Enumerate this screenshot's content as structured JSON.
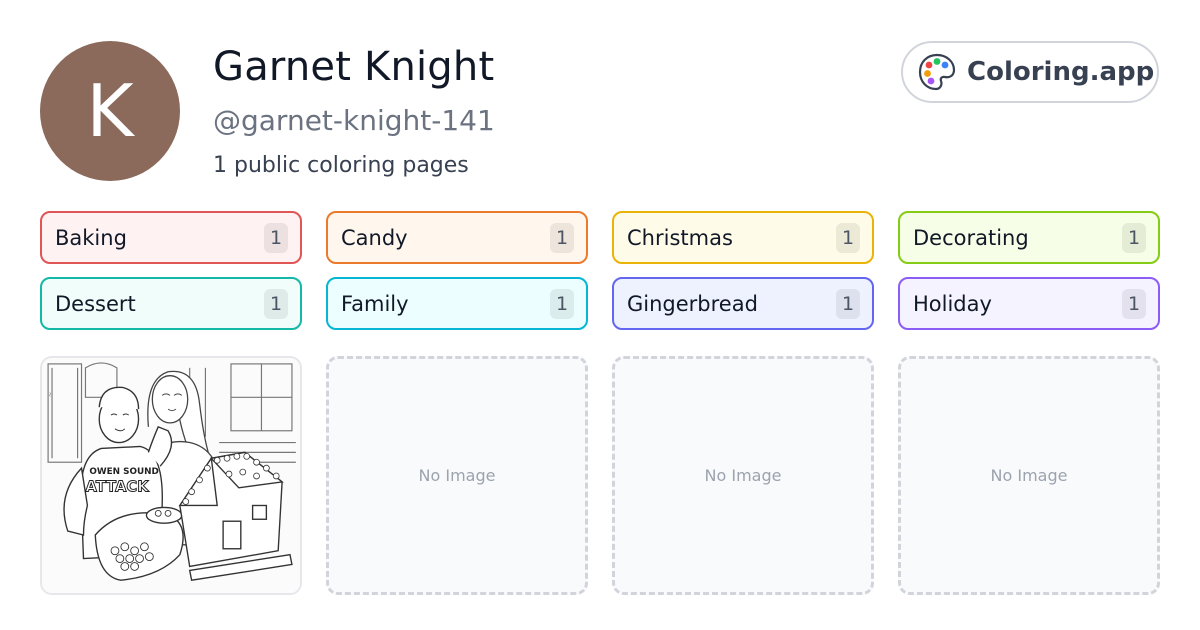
{
  "profile": {
    "initial": "K",
    "name": "Garnet Knight",
    "handle": "@garnet-knight-141",
    "count_text": "1 public coloring pages",
    "avatar_color": "#8b6a5c"
  },
  "brand": {
    "label": "Coloring.app",
    "icon": "palette-icon"
  },
  "tags": [
    {
      "label": "Baking",
      "count": "1",
      "border": "#e05555",
      "bg": "#fef2f2"
    },
    {
      "label": "Candy",
      "count": "1",
      "border": "#ec7a2c",
      "bg": "#fff7ed"
    },
    {
      "label": "Christmas",
      "count": "1",
      "border": "#eab308",
      "bg": "#fefce8"
    },
    {
      "label": "Decorating",
      "count": "1",
      "border": "#84cc16",
      "bg": "#f7fee7"
    },
    {
      "label": "Dessert",
      "count": "1",
      "border": "#14b8a6",
      "bg": "#f0fdfa"
    },
    {
      "label": "Family",
      "count": "1",
      "border": "#06b6d4",
      "bg": "#ecfeff"
    },
    {
      "label": "Gingerbread",
      "count": "1",
      "border": "#6366f1",
      "bg": "#eef2ff"
    },
    {
      "label": "Holiday",
      "count": "1",
      "border": "#8b5cf6",
      "bg": "#f5f3ff"
    }
  ],
  "thumbnails": {
    "first": {
      "shirt_text_1": "OWEN SOUND",
      "shirt_text_2": "ATTACK"
    },
    "empty_label": "No Image"
  }
}
